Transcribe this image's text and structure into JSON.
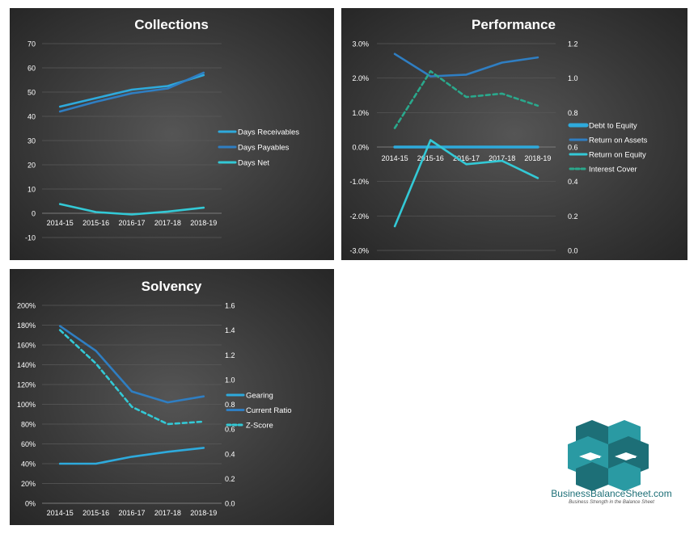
{
  "chart_data": [
    {
      "id": "collections",
      "type": "line",
      "title": "Collections",
      "categories": [
        "2014-15",
        "2015-16",
        "2016-17",
        "2017-18",
        "2018-19"
      ],
      "ylim": [
        -10,
        70
      ],
      "yticks": [
        "-10",
        "0",
        "10",
        "20",
        "30",
        "40",
        "50",
        "60",
        "70"
      ],
      "grid": true,
      "legend_position": "right",
      "series": [
        {
          "name": "Days Receivables",
          "values": [
            44,
            47.5,
            51,
            52.5,
            57
          ],
          "color": "#2eaadc",
          "dashed": false
        },
        {
          "name": "Days Payables",
          "values": [
            42,
            46,
            49.5,
            51.5,
            58
          ],
          "color": "#2f7ec2",
          "dashed": false
        },
        {
          "name": "Days Net",
          "values": [
            3.8,
            0.5,
            -0.5,
            0.7,
            2.3
          ],
          "color": "#33c9d6",
          "dashed": false
        }
      ]
    },
    {
      "id": "performance",
      "type": "line",
      "title": "Performance",
      "categories": [
        "2014-15",
        "2015-16",
        "2016-17",
        "2017-18",
        "2018-19"
      ],
      "ylim": [
        -3.0,
        3.0
      ],
      "yticks": [
        "-3.0%",
        "-2.0%",
        "-1.0%",
        "0.0%",
        "1.0%",
        "2.0%",
        "3.0%"
      ],
      "y2lim": [
        0,
        1.2
      ],
      "y2ticks": [
        "0.0",
        "0.2",
        "0.4",
        "0.6",
        "0.8",
        "1.0",
        "1.2"
      ],
      "grid": true,
      "legend_position": "right",
      "series": [
        {
          "name": "Debt to Equity",
          "values": [
            0,
            0,
            0,
            0,
            0
          ],
          "color": "#2eaadc",
          "dashed": false,
          "axis": "left",
          "width": 3.5
        },
        {
          "name": "Return on Assets",
          "values": [
            2.7,
            2.05,
            2.1,
            2.45,
            2.6
          ],
          "color": "#2f7ec2",
          "dashed": false,
          "axis": "left"
        },
        {
          "name": "Return on Equity",
          "values": [
            -2.3,
            0.2,
            -0.5,
            -0.4,
            -0.9
          ],
          "color": "#33c9d6",
          "dashed": false,
          "axis": "left"
        },
        {
          "name": "Interest Cover",
          "values": [
            0.71,
            1.04,
            0.89,
            0.91,
            0.84
          ],
          "color": "#2aa88c",
          "dashed": true,
          "axis": "right"
        }
      ]
    },
    {
      "id": "solvency",
      "type": "line",
      "title": "Solvency",
      "categories": [
        "2014-15",
        "2015-16",
        "2016-17",
        "2017-18",
        "2018-19"
      ],
      "ylim": [
        0,
        200
      ],
      "yticks": [
        "0%",
        "20%",
        "40%",
        "60%",
        "80%",
        "100%",
        "120%",
        "140%",
        "160%",
        "180%",
        "200%"
      ],
      "y2lim": [
        0,
        1.6
      ],
      "y2ticks": [
        "0.0",
        "0.2",
        "0.4",
        "0.6",
        "0.8",
        "1.0",
        "1.2",
        "1.4",
        "1.6"
      ],
      "grid": true,
      "legend_position": "right",
      "series": [
        {
          "name": "Gearing",
          "values": [
            40,
            40,
            47,
            52,
            56
          ],
          "color": "#2eaadc",
          "dashed": false,
          "axis": "left"
        },
        {
          "name": "Current Ratio",
          "values": [
            179,
            154,
            113,
            102,
            108
          ],
          "color": "#2f7ec2",
          "dashed": false,
          "axis": "left"
        },
        {
          "name": "Z-Score",
          "values": [
            1.4,
            1.13,
            0.78,
            0.64,
            0.66
          ],
          "color": "#33c9d6",
          "dashed": true,
          "axis": "right"
        }
      ]
    }
  ],
  "logo": {
    "name": "BusinessBalanceSheet.com",
    "tagline": "Business Strength in the Balance Sheet",
    "colors": [
      "#1d6f77",
      "#2a9aa3",
      "#ffffff"
    ]
  }
}
